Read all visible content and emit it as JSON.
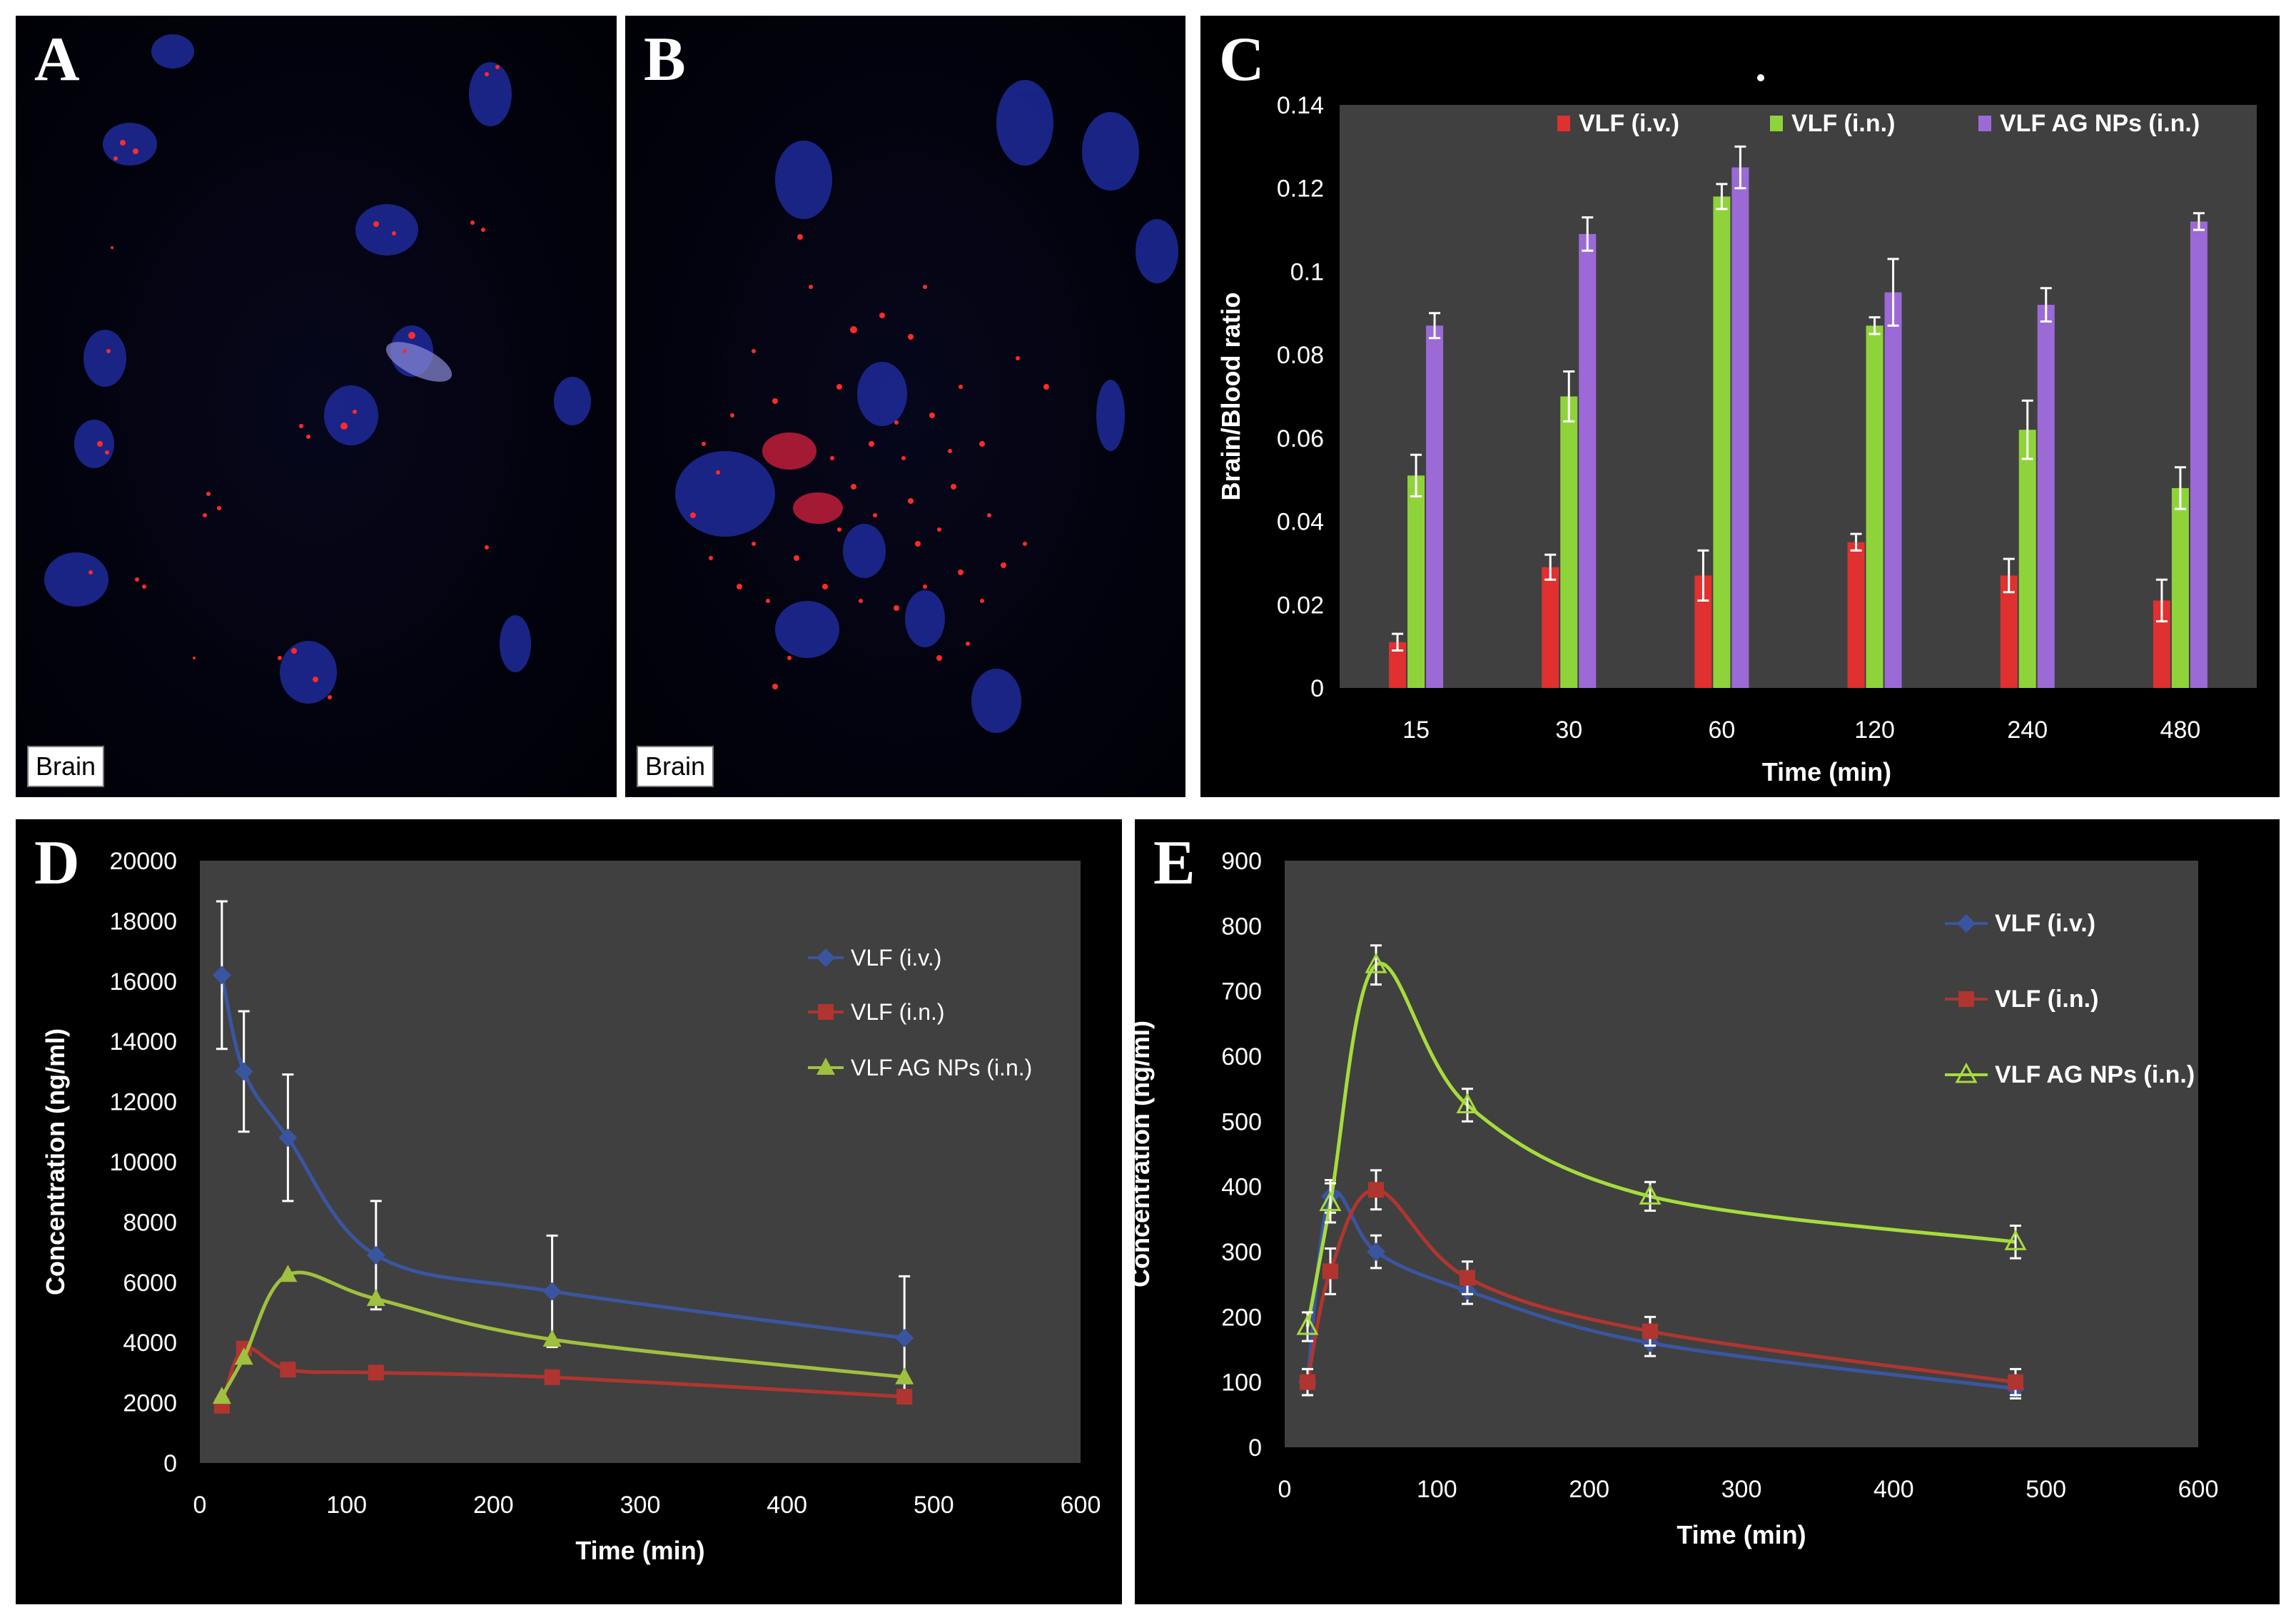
{
  "panels": {
    "A": {
      "letter": "A",
      "caption": "Brain"
    },
    "B": {
      "letter": "B",
      "caption": "Brain"
    },
    "C": {
      "letter": "C"
    },
    "D": {
      "letter": "D"
    },
    "E": {
      "letter": "E"
    }
  },
  "colors": {
    "iv": "#e03030",
    "in": "#8fd33a",
    "ag": "#9b6ad6",
    "line_iv": "#3a55a0",
    "line_in": "#b03530",
    "line_ag_d": "#9fc040",
    "line_ag_e": "#a6dc3c",
    "plot_bg": "#404040",
    "axis_text": "#ffffff"
  },
  "chart_data": [
    {
      "id": "C",
      "type": "bar",
      "title": "",
      "xlabel": "Time (min)",
      "ylabel": "Brain/Blood ratio",
      "categories": [
        "15",
        "30",
        "60",
        "120",
        "240",
        "480"
      ],
      "ylim": [
        0,
        0.14
      ],
      "yticks": [
        "0",
        "0.02",
        "0.04",
        "0.06",
        "0.08",
        "0.1",
        "0.12",
        "0.14"
      ],
      "legend_position": "top",
      "series": [
        {
          "name": "VLF (i.v.)",
          "values": [
            0.011,
            0.029,
            0.027,
            0.035,
            0.027,
            0.021
          ],
          "errors": [
            0.002,
            0.003,
            0.006,
            0.002,
            0.004,
            0.005
          ]
        },
        {
          "name": "VLF (i.n.)",
          "values": [
            0.051,
            0.07,
            0.118,
            0.087,
            0.062,
            0.048
          ],
          "errors": [
            0.005,
            0.006,
            0.003,
            0.002,
            0.007,
            0.005
          ]
        },
        {
          "name": "VLF AG NPs (i.n.)",
          "values": [
            0.087,
            0.109,
            0.125,
            0.095,
            0.092,
            0.112
          ],
          "errors": [
            0.003,
            0.004,
            0.005,
            0.008,
            0.004,
            0.002
          ]
        }
      ]
    },
    {
      "id": "D",
      "type": "line",
      "title": "",
      "xlabel": "Time (min)",
      "ylabel": "Concentration (ng/ml)",
      "xlim": [
        0,
        600
      ],
      "ylim": [
        0,
        20000
      ],
      "xticks": [
        "0",
        "100",
        "200",
        "300",
        "400",
        "500",
        "600"
      ],
      "yticks": [
        "0",
        "2000",
        "4000",
        "6000",
        "8000",
        "10000",
        "12000",
        "14000",
        "16000",
        "18000",
        "20000"
      ],
      "legend_position": "right",
      "series": [
        {
          "name": "VLF (i.v.)",
          "marker": "diamond",
          "x": [
            15,
            30,
            60,
            120,
            240,
            480
          ],
          "values": [
            16200,
            13000,
            10800,
            6900,
            5700,
            4150
          ],
          "errors": [
            2450,
            2000,
            2100,
            1800,
            1850,
            2050
          ]
        },
        {
          "name": "VLF (i.n.)",
          "marker": "square",
          "x": [
            15,
            30,
            60,
            120,
            240,
            480
          ],
          "values": [
            1900,
            3800,
            3100,
            3000,
            2850,
            2200
          ],
          "errors": [
            0,
            0,
            0,
            0,
            0,
            0
          ]
        },
        {
          "name": "VLF AG NPs (i.n.)",
          "marker": "triangle",
          "x": [
            15,
            30,
            60,
            120,
            240,
            480
          ],
          "values": [
            2200,
            3500,
            6250,
            5450,
            4100,
            2850
          ],
          "errors": [
            0,
            0,
            0,
            0,
            0,
            0
          ]
        }
      ]
    },
    {
      "id": "E",
      "type": "line",
      "title": "",
      "xlabel": "Time (min)",
      "ylabel": "Concentration (ng/ml)",
      "xlim": [
        0,
        600
      ],
      "ylim": [
        0,
        900
      ],
      "xticks": [
        "0",
        "100",
        "200",
        "300",
        "400",
        "500",
        "600"
      ],
      "yticks": [
        "0",
        "100",
        "200",
        "300",
        "400",
        "500",
        "600",
        "700",
        "800",
        "900"
      ],
      "legend_position": "top-right",
      "series": [
        {
          "name": "VLF (i.v.)",
          "marker": "diamond",
          "x": [
            15,
            30,
            60,
            120,
            240,
            480
          ],
          "values": [
            100,
            385,
            300,
            240,
            160,
            90
          ],
          "errors": [
            20,
            25,
            25,
            20,
            20,
            15
          ]
        },
        {
          "name": "VLF (i.n.)",
          "marker": "square",
          "x": [
            15,
            30,
            60,
            120,
            240,
            480
          ],
          "values": [
            100,
            270,
            395,
            260,
            178,
            100
          ],
          "errors": [
            20,
            35,
            30,
            25,
            22,
            20
          ]
        },
        {
          "name": "VLF AG NPs (i.n.)",
          "marker": "triangle-open",
          "x": [
            15,
            30,
            60,
            120,
            240,
            480
          ],
          "values": [
            185,
            375,
            740,
            525,
            385,
            315
          ],
          "errors": [
            22,
            30,
            30,
            25,
            22,
            25
          ]
        }
      ]
    }
  ]
}
